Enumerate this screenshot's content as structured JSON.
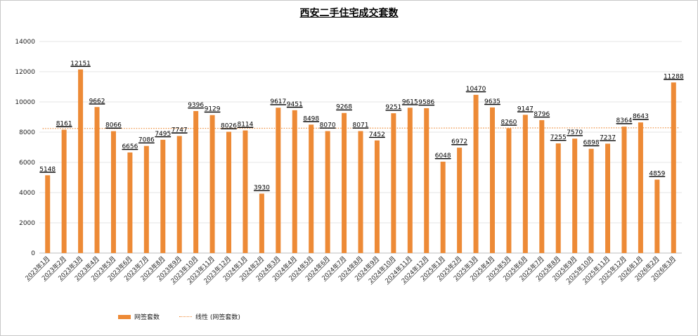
{
  "chart_data": {
    "type": "bar",
    "title": "西安二手住宅成交套数",
    "categories": [
      "2023年1月",
      "2023年2月",
      "2023年3月",
      "2023年4月",
      "2023年5月",
      "2023年6月",
      "2023年7月",
      "2023年8月",
      "2023年9月",
      "2023年10月",
      "2023年11月",
      "2023年12月",
      "2024年1月",
      "2024年2月",
      "2024年3月",
      "2024年4月",
      "2024年5月",
      "2024年6月",
      "2024年7月",
      "2024年8月",
      "2024年9月",
      "2024年10月",
      "2024年11月",
      "2024年12月",
      "2025年1月",
      "2025年2月",
      "2025年3月",
      "2025年4月",
      "2025年5月",
      "2025年6月",
      "2025年7月",
      "2025年8月",
      "2025年9月",
      "2025年10月",
      "2025年11月",
      "2025年12月",
      "2026年1月",
      "2026年2月",
      "2026年3月"
    ],
    "series": [
      {
        "name": "网签套数",
        "values": [
          5148,
          8161,
          12151,
          9662,
          8066,
          6656,
          7086,
          7495,
          7747,
          9396,
          9129,
          8026,
          8114,
          3930,
          9617,
          9451,
          8498,
          8070,
          9268,
          8071,
          7452,
          9251,
          9615,
          9586,
          6048,
          6972,
          10470,
          9635,
          8260,
          9147,
          8796,
          7255,
          7570,
          6898,
          7237,
          8364,
          8643,
          4859,
          11288
        ]
      }
    ],
    "trendline": {
      "name": "线性 (网签套数)",
      "start": 8240,
      "end": 8290
    },
    "ylim": [
      0,
      14000
    ],
    "yticks": [
      "0",
      "2000",
      "4000",
      "6000",
      "8000",
      "10000",
      "12000",
      "14000"
    ],
    "grid": true,
    "legend_position": "bottom-left",
    "colors": {
      "bar": "#ED8A36",
      "trend": "#ED8A36",
      "grid": "#e4e4e4"
    }
  }
}
